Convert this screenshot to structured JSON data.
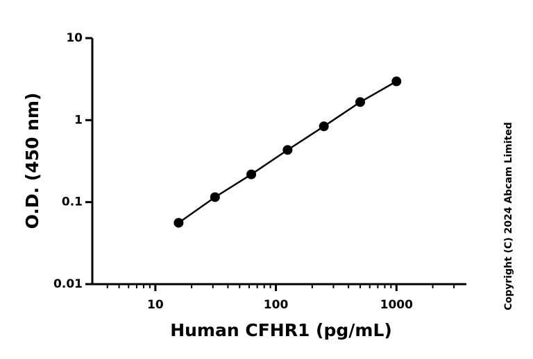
{
  "chart_data": {
    "type": "line",
    "x_label": "Human CFHR1 (pg/mL)",
    "y_label": "O.D. (450 nm)",
    "copyright": "Copyright (C) 2024 Abcam Limited",
    "x": [
      15.6,
      31.25,
      62.5,
      125,
      250,
      500,
      1000
    ],
    "series": [
      {
        "values": [
          0.056,
          0.115,
          0.218,
          0.433,
          0.84,
          1.66,
          2.97
        ],
        "color": "#000000"
      }
    ],
    "xlim": [
      3,
      3800
    ],
    "ylim": [
      0.01,
      10
    ],
    "xticks": [
      10,
      100,
      1000
    ],
    "yticks": [
      0.01,
      0.1,
      1,
      10
    ],
    "xminorticks": [
      4,
      5,
      6,
      7,
      8,
      9,
      20,
      30,
      40,
      50,
      60,
      70,
      80,
      90,
      200,
      300,
      400,
      500,
      600,
      700,
      800,
      900,
      2000,
      3000
    ],
    "xscale": "log",
    "yscale": "log",
    "grid": false
  }
}
